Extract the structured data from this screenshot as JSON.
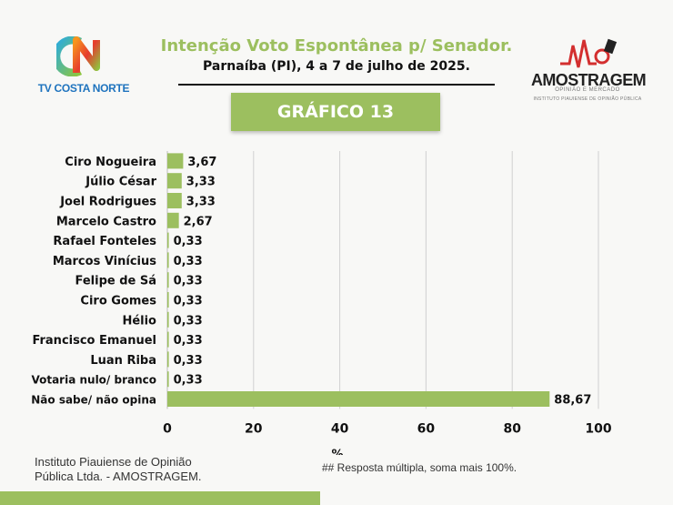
{
  "header": {
    "title": "Intenção Voto Espontânea p/ Senador.",
    "subtitle": "Parnaíba (PI), 4 a 7 de julho de 2025.",
    "graph_label": "GRÁFICO 13"
  },
  "brand_left": {
    "text": "TV COSTA NORTE",
    "color": "#1e73be"
  },
  "brand_right": {
    "name": "AMOSTRAGEM",
    "tagline": "OPINIÃO E MERCADO",
    "institute": "INSTITUTO PIAUIENSE DE OPINIÃO PÚBLICA"
  },
  "colors": {
    "accent": "#9cbf5f",
    "text": "#111111",
    "grid": "#d0d0d0"
  },
  "footer": {
    "source_line1": "Instituto Piauiense de Opinião",
    "source_line2": "Pública Ltda. - AMOSTRAGEM.",
    "note": "## Resposta múltipla, soma mais 100%."
  },
  "chart_data": {
    "type": "bar",
    "orientation": "horizontal",
    "categories": [
      "Ciro Nogueira",
      "Júlio César",
      "Joel Rodrigues",
      "Marcelo Castro",
      "Rafael Fonteles",
      "Marcos Vinícius",
      "Felipe de Sá",
      "Ciro Gomes",
      "Hélio",
      "Francisco Emanuel",
      "Luan Riba",
      "Votaria nulo/ branco",
      "Não sabe/ não opina"
    ],
    "values": [
      3.67,
      3.33,
      3.33,
      2.67,
      0.33,
      0.33,
      0.33,
      0.33,
      0.33,
      0.33,
      0.33,
      0.33,
      88.67
    ],
    "value_labels": [
      "3,67",
      "3,33",
      "3,33",
      "2,67",
      "0,33",
      "0,33",
      "0,33",
      "0,33",
      "0,33",
      "0,33",
      "0,33",
      "0,33",
      "88,67"
    ],
    "xlabel": "%",
    "xlim": [
      0,
      100
    ],
    "xticks": [
      "0",
      "20",
      "40",
      "60",
      "80",
      "100"
    ],
    "grid": true,
    "bar_color": "#9cbf5f"
  }
}
